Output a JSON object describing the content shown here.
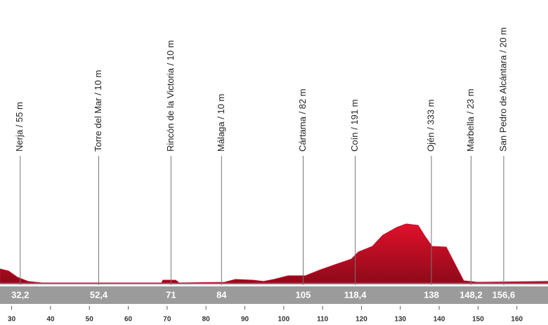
{
  "chart_data": {
    "type": "profile",
    "color": "#c8102e",
    "x": [
      27.0,
      29.2,
      31.5,
      34.2,
      37.8,
      68.6,
      68.9,
      72.2,
      73.1,
      84.8,
      87.6,
      92.1,
      94.8,
      97.5,
      101.1,
      105.6,
      109.2,
      112.9,
      117.4,
      119.2,
      122.8,
      125.5,
      129.1,
      131.5,
      134.6,
      136.4,
      138.2,
      141.8,
      146.3,
      149.9,
      168.0
    ],
    "values": [
      87,
      74,
      35,
      9,
      0,
      0,
      17,
      17,
      0,
      4,
      22,
      17,
      9,
      22,
      44,
      44,
      79,
      111,
      148,
      192,
      227,
      297,
      345,
      367,
      358,
      288,
      227,
      223,
      13,
      4,
      9
    ],
    "xlim": [
      27,
      168
    ],
    "ylim": [
      0,
      450
    ],
    "xticks": [
      30,
      40,
      50,
      60,
      70,
      80,
      90,
      100,
      110,
      120,
      130,
      140,
      150,
      160
    ],
    "towns": [
      {
        "name": "Nerja / 55 m",
        "km": 32.2,
        "km_label": "32,2"
      },
      {
        "name": "Torre del Mar / 10 m",
        "km": 52.4,
        "km_label": "52,4"
      },
      {
        "name": "Rincón de la Victoria / 10 m",
        "km": 71,
        "km_label": "71"
      },
      {
        "name": "Málaga / 10 m",
        "km": 84,
        "km_label": "84"
      },
      {
        "name": "Cártama / 82 m",
        "km": 105,
        "km_label": "105"
      },
      {
        "name": "Coín / 191 m",
        "km": 118.4,
        "km_label": "118,4"
      },
      {
        "name": "Ojén / 333 m",
        "km": 138,
        "km_label": "138"
      },
      {
        "name": "Marbella / 23 m",
        "km": 148.2,
        "km_label": "148,2"
      },
      {
        "name": "San Pedro de Alcántara / 20 m",
        "km": 156.6,
        "km_label": "156,6"
      }
    ]
  }
}
